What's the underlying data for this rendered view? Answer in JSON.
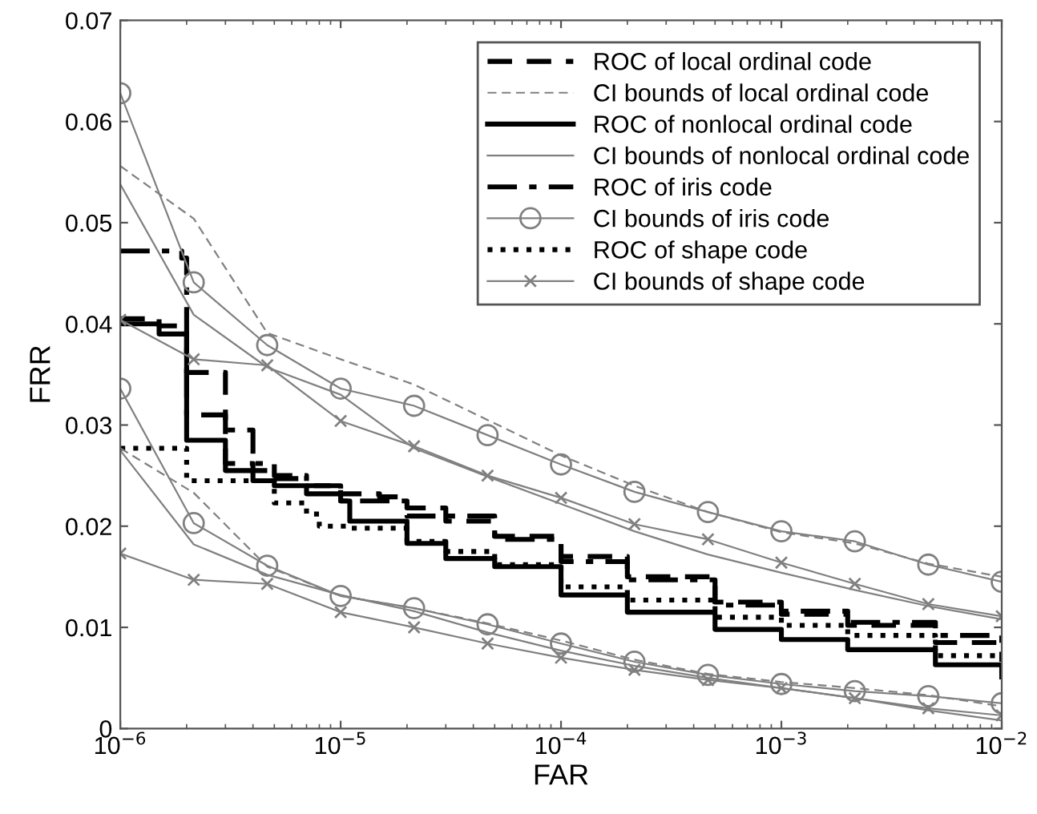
{
  "chart_data": {
    "type": "line",
    "xlabel": "FAR",
    "ylabel": "FRR",
    "log": "x",
    "grid": false,
    "legend": "top right",
    "xlim": [
      1e-06,
      0.01
    ],
    "ylim": [
      0,
      0.07
    ],
    "xticks": [
      {
        "value": 1e-06,
        "label": "10$^{−6}$"
      },
      {
        "value": 1e-05,
        "label": "10$^{−5}$"
      },
      {
        "value": 0.0001,
        "label": "10$^{−4}$"
      },
      {
        "value": 0.001,
        "label": "10$^{−3}$"
      },
      {
        "value": 0.01,
        "label": "10$^{−2}$"
      }
    ],
    "yticks": [
      0,
      0.01,
      0.02,
      0.03,
      0.04,
      0.05,
      0.06,
      0.07
    ],
    "series": [
      {
        "name": "ROC of local ordinal code",
        "type": "step",
        "color": "#000000",
        "line_style": "dashed",
        "marker": "none",
        "x": [
          1e-06,
          1.5e-06,
          2e-06,
          3e-06,
          4e-06,
          5e-06,
          7e-06,
          1e-05,
          1.5e-05,
          2e-05,
          3e-05,
          5e-05,
          0.0001,
          0.0002,
          0.0005,
          0.001,
          0.002,
          0.005,
          0.01
        ],
        "values": [
          0.0405,
          0.0398,
          0.0352,
          0.0262,
          0.0255,
          0.0247,
          0.024,
          0.0232,
          0.0229,
          0.0218,
          0.0205,
          0.019,
          0.017,
          0.015,
          0.0125,
          0.0113,
          0.0102,
          0.0085,
          0.0068
        ]
      },
      {
        "name": "CI bounds of local ordinal code",
        "color": "#808080",
        "line_style": "dashed",
        "marker": "none",
        "values": [
          0.0556,
          0.0504,
          0.0391,
          0.0365,
          0.034,
          0.0305,
          0.027,
          0.024,
          0.0214,
          0.0194,
          0.0183,
          0.0163,
          0.015
        ]
      },
      {
        "name": "ROC of nonlocal ordinal code",
        "type": "step",
        "color": "#000000",
        "line_style": "solid",
        "marker": "none",
        "x": [
          1e-06,
          1.5e-06,
          2e-06,
          3e-06,
          4e-06,
          5e-06,
          7e-06,
          1e-05,
          1.1e-05,
          2e-05,
          3e-05,
          5e-05,
          0.0001,
          0.0002,
          0.0005,
          0.001,
          0.002,
          0.005,
          0.01
        ],
        "values": [
          0.04,
          0.039,
          0.0285,
          0.0255,
          0.0245,
          0.024,
          0.0232,
          0.0225,
          0.0205,
          0.0183,
          0.0168,
          0.016,
          0.0132,
          0.0115,
          0.0098,
          0.0088,
          0.0078,
          0.0063,
          0.0051
        ]
      },
      {
        "name": "CI bounds of nonlocal ordinal code",
        "color": "#808080",
        "line_style": "solid",
        "marker": "none",
        "values": [
          0.0538,
          0.0409,
          0.0357,
          0.033,
          0.0277,
          0.0249,
          0.0222,
          0.0195,
          0.0172,
          0.0154,
          0.0137,
          0.0121,
          0.0108
        ]
      },
      {
        "name": "ROC of iris code",
        "type": "step",
        "color": "#000000",
        "line_style": "dashdot",
        "marker": "none",
        "x": [
          1e-06,
          1.9e-06,
          2e-06,
          3e-06,
          4e-06,
          5e-06,
          7e-06,
          1e-05,
          2e-05,
          5e-05,
          0.0001,
          0.0002,
          0.0005,
          0.001,
          0.002,
          0.005,
          0.01
        ],
        "values": [
          0.0472,
          0.0465,
          0.031,
          0.0295,
          0.0262,
          0.025,
          0.024,
          0.0225,
          0.021,
          0.0187,
          0.0165,
          0.0147,
          0.0122,
          0.0116,
          0.0105,
          0.0092,
          0.008
        ]
      },
      {
        "name": "CI bounds of iris code",
        "color": "#808080",
        "line_style": "solid",
        "marker": "circle",
        "values": [
          0.0628,
          0.0441,
          0.0379,
          0.0336,
          0.0319,
          0.029,
          0.0261,
          0.0234,
          0.0214,
          0.0195,
          0.0185,
          0.0162,
          0.0145
        ]
      },
      {
        "name": "ROC of shape code",
        "type": "step",
        "color": "#000000",
        "line_style": "dotted",
        "marker": "none",
        "x": [
          1e-06,
          2e-06,
          5e-06,
          7e-06,
          8e-06,
          1.1e-05,
          2e-05,
          3e-05,
          5e-05,
          0.0001,
          0.0002,
          0.0005,
          0.001,
          0.002,
          0.005,
          0.01
        ],
        "values": [
          0.0277,
          0.0245,
          0.0223,
          0.0212,
          0.02,
          0.0198,
          0.0185,
          0.0175,
          0.0162,
          0.014,
          0.0127,
          0.011,
          0.0102,
          0.0092,
          0.0072,
          0.0055
        ]
      },
      {
        "name": "CI bounds of shape code",
        "color": "#808080",
        "line_style": "solid",
        "marker": "cross",
        "values": [
          0.0404,
          0.0365,
          0.0359,
          0.0304,
          0.0279,
          0.025,
          0.0228,
          0.0202,
          0.0187,
          0.0164,
          0.0143,
          0.0123,
          0.0111
        ]
      },
      {
        "color": "#808080",
        "line_style": "dashed",
        "marker": "none",
        "values": [
          0.0277,
          0.0233,
          0.016,
          0.0131,
          0.0119,
          0.0104,
          0.0087,
          0.0068,
          0.0054,
          0.0046,
          0.004,
          0.0033,
          0.0022
        ]
      },
      {
        "color": "#808080",
        "line_style": "solid",
        "marker": "none",
        "values": [
          0.0275,
          0.0182,
          0.0152,
          0.0132,
          0.0116,
          0.0095,
          0.0077,
          0.0062,
          0.005,
          0.004,
          0.003,
          0.0018,
          0.0008
        ]
      },
      {
        "color": "#808080",
        "line_style": "solid",
        "marker": "circle",
        "values": [
          0.0336,
          0.0203,
          0.0161,
          0.0131,
          0.0119,
          0.0103,
          0.0084,
          0.0066,
          0.0053,
          0.0044,
          0.0037,
          0.0032,
          0.0025
        ]
      },
      {
        "color": "#808080",
        "line_style": "solid",
        "marker": "cross",
        "values": [
          0.0173,
          0.0147,
          0.0143,
          0.0115,
          0.01,
          0.0084,
          0.007,
          0.0058,
          0.0048,
          0.004,
          0.003,
          0.002,
          0.0013
        ]
      }
    ],
    "x": [
      1e-06,
      2.154e-06,
      4.642e-06,
      1e-05,
      2.154e-05,
      4.642e-05,
      0.0001,
      0.0002154,
      0.0004642,
      0.001,
      0.002154,
      0.004642,
      0.01
    ]
  }
}
